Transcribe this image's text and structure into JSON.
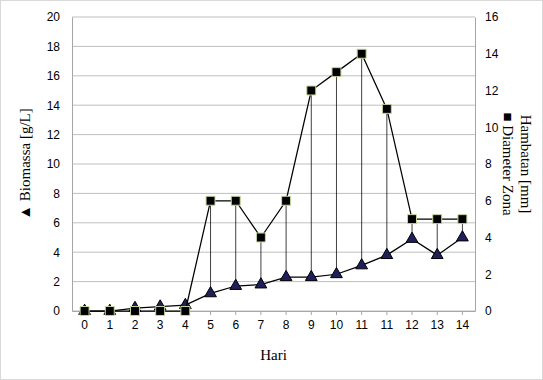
{
  "chart_data": {
    "type": "line",
    "x_label": "Hari",
    "y_label": "▲ Biomassa [g/L]",
    "y2_label": [
      "■ Diameter Zona",
      "Hambatan [mm]"
    ],
    "categories": [
      "0",
      "1",
      "2",
      "3",
      "4",
      "5",
      "6",
      "7",
      "8",
      "9",
      "10",
      "11",
      "11",
      "12",
      "13",
      "14"
    ],
    "ylim": [
      0,
      20
    ],
    "yticks": [
      0,
      2,
      4,
      6,
      8,
      10,
      12,
      14,
      16,
      18,
      20
    ],
    "y2lim": [
      0,
      16
    ],
    "y2ticks": [
      0,
      2,
      4,
      6,
      8,
      10,
      12,
      14,
      16
    ],
    "grid": true,
    "series": [
      {
        "color": "#000000",
        "marker": "triangle",
        "line_style": "solid",
        "values": [
          0,
          0,
          0.2,
          0.3,
          0.4,
          1.2,
          1.7,
          1.8,
          2.3,
          2.3,
          2.5,
          3.1,
          3.8,
          4.9,
          3.8,
          5.0
        ]
      },
      {
        "color": "#000000",
        "marker": "square",
        "line_style": "solid",
        "axis": "y2",
        "values": [
          0,
          0,
          0,
          0,
          0,
          6,
          6,
          4,
          6,
          12,
          13,
          14,
          11,
          5,
          5,
          5
        ]
      }
    ]
  }
}
